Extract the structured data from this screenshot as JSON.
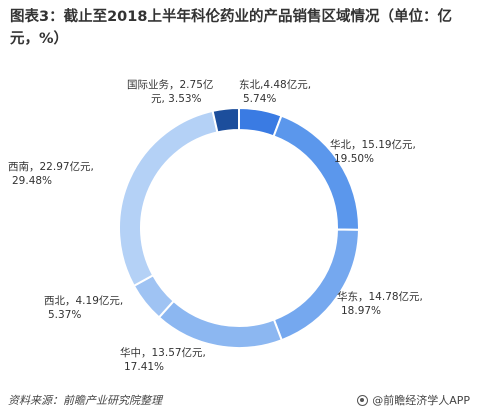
{
  "title": "图表3：截止至2018上半年科伦药业的产品销售区域情况（单位：亿元，%）",
  "chart_data": {
    "type": "pie",
    "donut": true,
    "title": "图表3：截止至2018上半年科伦药业的产品销售区域情况（单位：亿元，%）",
    "slices": [
      {
        "name": "东北",
        "value": 4.48,
        "percent": 5.74,
        "color": "#3a7be3",
        "label_lines": [
          "东北,4.48亿元,",
          "5.74%"
        ]
      },
      {
        "name": "华北",
        "value": 15.19,
        "percent": 19.5,
        "color": "#5b97ec",
        "label_lines": [
          "华北，15.19亿元,",
          "19.50%"
        ]
      },
      {
        "name": "华东",
        "value": 14.78,
        "percent": 18.97,
        "color": "#75a8ef",
        "label_lines": [
          "华东，14.78亿元,",
          "18.97%"
        ]
      },
      {
        "name": "华中",
        "value": 13.57,
        "percent": 17.41,
        "color": "#8cb7f1",
        "label_lines": [
          "华中，13.57亿元,",
          "17.41%"
        ]
      },
      {
        "name": "西北",
        "value": 4.19,
        "percent": 5.37,
        "color": "#9fc3f3",
        "label_lines": [
          "西北，4.19亿元,",
          "5.37%"
        ]
      },
      {
        "name": "西南",
        "value": 22.97,
        "percent": 29.48,
        "color": "#b4d1f6",
        "label_lines": [
          "西南，22.97亿元,",
          "29.48%"
        ]
      },
      {
        "name": "国际业务",
        "value": 2.75,
        "percent": 3.53,
        "color": "#1c4e9c",
        "label_lines": [
          "国际业务，2.75亿",
          "元, 3.53%"
        ]
      }
    ]
  },
  "source": "资料来源：前瞻产业研究院整理",
  "brand": "@前瞻经济学人APP"
}
